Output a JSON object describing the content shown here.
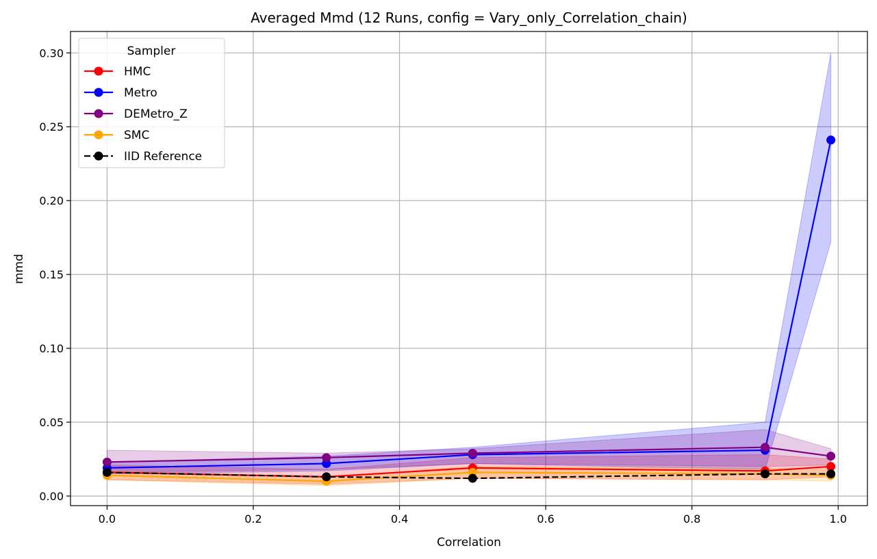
{
  "chart_data": {
    "type": "line",
    "title": "Averaged Mmd (12 Runs, config = Vary_only_Correlation_chain)",
    "xlabel": "Correlation",
    "ylabel": "mmd",
    "xlim": [
      -0.05,
      1.04
    ],
    "ylim": [
      -0.0065,
      0.3145
    ],
    "xticks": [
      0.0,
      0.2,
      0.4,
      0.6,
      0.8,
      1.0
    ],
    "xtick_labels": [
      "0.0",
      "0.2",
      "0.4",
      "0.6",
      "0.8",
      "1.0"
    ],
    "yticks": [
      0.0,
      0.05,
      0.1,
      0.15,
      0.2,
      0.25,
      0.3
    ],
    "ytick_labels": [
      "0.00",
      "0.05",
      "0.10",
      "0.15",
      "0.20",
      "0.25",
      "0.30"
    ],
    "grid": true,
    "legend_title": "Sampler",
    "legend_position": "top-left",
    "x": [
      0.0,
      0.3,
      0.5,
      0.9,
      0.99
    ],
    "series": [
      {
        "name": "HMC",
        "color": "#ff0000",
        "dashed": false,
        "values": [
          0.016,
          0.013,
          0.019,
          0.017,
          0.02
        ],
        "lower": [
          0.011,
          0.008,
          0.012,
          0.011,
          0.013
        ],
        "upper": [
          0.021,
          0.018,
          0.026,
          0.028,
          0.025
        ]
      },
      {
        "name": "Metro",
        "color": "#0000ff",
        "dashed": false,
        "values": [
          0.019,
          0.022,
          0.028,
          0.031,
          0.241
        ],
        "lower": [
          0.015,
          0.017,
          0.022,
          0.018,
          0.172
        ],
        "upper": [
          0.023,
          0.027,
          0.033,
          0.05,
          0.3
        ]
      },
      {
        "name": "DEMetro_Z",
        "color": "#800080",
        "dashed": false,
        "values": [
          0.023,
          0.026,
          0.029,
          0.033,
          0.027
        ],
        "lower": [
          0.016,
          0.018,
          0.022,
          0.02,
          0.021
        ],
        "upper": [
          0.031,
          0.029,
          0.032,
          0.045,
          0.032
        ]
      },
      {
        "name": "SMC",
        "color": "#ffa500",
        "dashed": false,
        "values": [
          0.014,
          0.01,
          0.016,
          0.015,
          0.014
        ],
        "lower": [
          0.011,
          0.007,
          0.012,
          0.011,
          0.01
        ],
        "upper": [
          0.017,
          0.013,
          0.02,
          0.019,
          0.018
        ]
      },
      {
        "name": "IID Reference",
        "color": "#000000",
        "dashed": true,
        "values": [
          0.016,
          0.013,
          0.012,
          0.015,
          0.015
        ]
      }
    ]
  }
}
